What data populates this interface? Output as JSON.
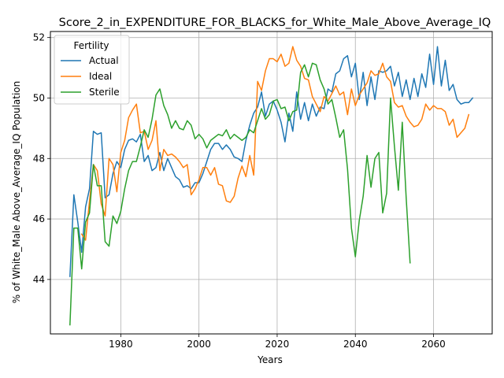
{
  "chart_data": {
    "type": "line",
    "title": "Score_2_in_EXPENDITURE_FOR_BLACKS_for_White_Male_Above_Average_IQ",
    "xlabel": "Years",
    "ylabel": "% of White_Male Above_Average_IQ Population",
    "xlim": [
      1962,
      2075
    ],
    "ylim": [
      42.2,
      52.2
    ],
    "xticks": [
      1980,
      2000,
      2020,
      2040,
      2060
    ],
    "yticks": [
      44,
      46,
      48,
      50,
      52
    ],
    "grid": true,
    "legend": {
      "title": "Fertility",
      "placement": "top-left"
    },
    "series": [
      {
        "name": "Actual",
        "color": "#1f77b4",
        "x_start": 1967,
        "values": [
          44.1,
          46.8,
          45.9,
          44.9,
          46.4,
          47.0,
          48.9,
          48.8,
          48.85,
          46.7,
          46.8,
          47.5,
          47.9,
          47.7,
          48.3,
          48.6,
          48.65,
          48.55,
          48.8,
          47.9,
          48.1,
          47.6,
          47.7,
          48.2,
          47.6,
          48.0,
          47.7,
          47.4,
          47.3,
          47.05,
          47.1,
          47.0,
          47.2,
          47.2,
          47.5,
          47.9,
          48.3,
          48.5,
          48.5,
          48.3,
          48.45,
          48.3,
          48.05,
          48.0,
          47.9,
          48.6,
          49.1,
          49.5,
          49.7,
          50.2,
          49.4,
          49.8,
          49.9,
          49.6,
          49.2,
          48.55,
          49.5,
          48.9,
          50.2,
          49.3,
          49.85,
          49.25,
          49.8,
          49.4,
          49.7,
          49.65,
          50.3,
          50.2,
          50.8,
          50.9,
          51.3,
          51.4,
          50.7,
          51.15,
          49.95,
          50.85,
          49.75,
          50.7,
          49.95,
          50.9,
          50.85,
          50.9,
          51.05,
          50.4,
          50.85,
          50.05,
          50.6,
          49.95,
          50.65,
          50.05,
          50.8,
          50.35,
          51.45,
          50.45,
          51.7,
          50.4,
          51.25,
          50.25,
          50.45,
          49.95,
          49.8,
          49.85,
          49.85,
          50.0
        ]
      },
      {
        "name": "Ideal",
        "color": "#ff7f0e",
        "x_start": 1970,
        "values": [
          45.5,
          45.3,
          46.6,
          47.8,
          47.6,
          46.5,
          46.1,
          48.0,
          47.8,
          46.9,
          48.2,
          48.6,
          49.35,
          49.6,
          49.8,
          48.85,
          48.9,
          48.3,
          48.6,
          49.25,
          47.6,
          48.3,
          48.1,
          48.15,
          48.05,
          47.9,
          47.7,
          47.8,
          46.8,
          47.0,
          47.3,
          47.7,
          47.7,
          47.45,
          47.7,
          47.15,
          47.1,
          46.6,
          46.55,
          46.75,
          47.35,
          47.75,
          47.4,
          48.1,
          47.45,
          50.55,
          50.25,
          50.9,
          51.3,
          51.3,
          51.2,
          51.45,
          51.05,
          51.15,
          51.7,
          51.25,
          51.05,
          50.65,
          50.6,
          50.05,
          49.8,
          49.55,
          50.05,
          49.9,
          50.15,
          50.4,
          50.1,
          50.2,
          49.45,
          50.3,
          49.75,
          50.1,
          50.3,
          50.5,
          50.9,
          50.75,
          50.8,
          51.15,
          50.7,
          50.55,
          49.85,
          49.7,
          49.75,
          49.4,
          49.2,
          49.05,
          49.1,
          49.3,
          49.8,
          49.6,
          49.75,
          49.65,
          49.65,
          49.55,
          49.1,
          49.3,
          48.7,
          48.85,
          49.0,
          49.45
        ]
      },
      {
        "name": "Sterile",
        "color": "#2ca02c",
        "x_start": 1967,
        "values": [
          42.5,
          45.7,
          45.7,
          44.35,
          45.9,
          46.2,
          47.8,
          47.1,
          47.1,
          45.25,
          45.1,
          46.1,
          45.85,
          46.25,
          47.0,
          47.6,
          47.9,
          47.9,
          48.4,
          48.95,
          48.7,
          49.3,
          50.1,
          50.3,
          49.75,
          49.45,
          49.0,
          49.25,
          49.0,
          48.95,
          49.25,
          49.1,
          48.65,
          48.8,
          48.65,
          48.35,
          48.6,
          48.7,
          48.8,
          48.75,
          48.95,
          48.65,
          48.8,
          48.7,
          48.6,
          48.7,
          48.95,
          48.85,
          49.25,
          49.65,
          49.3,
          49.45,
          49.9,
          49.95,
          49.65,
          49.7,
          49.25,
          49.55,
          49.6,
          50.85,
          51.1,
          50.7,
          51.15,
          51.1,
          50.6,
          50.3,
          49.8,
          49.95,
          49.35,
          48.7,
          48.95,
          47.65,
          45.7,
          44.75,
          45.95,
          46.75,
          48.1,
          47.05,
          48.0,
          48.2,
          46.2,
          46.85,
          50.0,
          48.4,
          46.95,
          49.2,
          46.7,
          44.55
        ]
      }
    ]
  }
}
